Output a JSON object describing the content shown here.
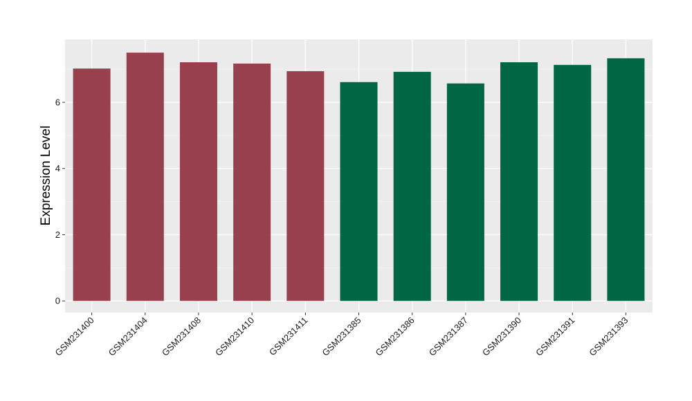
{
  "chart_data": {
    "type": "bar",
    "ylabel": "Expression Level",
    "xlabel": "",
    "ylim": [
      -0.35,
      7.9
    ],
    "yticks": [
      0,
      2,
      4,
      6
    ],
    "grid": true,
    "panel_background": "#EBEBEB",
    "categories": [
      "GSM231400",
      "GSM231404",
      "GSM231408",
      "GSM231410",
      "GSM231411",
      "GSM231385",
      "GSM231386",
      "GSM231387",
      "GSM231390",
      "GSM231391",
      "GSM231393"
    ],
    "values": [
      7.02,
      7.5,
      7.21,
      7.17,
      6.94,
      6.61,
      6.92,
      6.57,
      7.21,
      7.13,
      7.33
    ],
    "bar_colors": [
      "#99404E",
      "#99404E",
      "#99404E",
      "#99404E",
      "#99404E",
      "#006644",
      "#006644",
      "#006644",
      "#006644",
      "#006644",
      "#006644"
    ]
  }
}
